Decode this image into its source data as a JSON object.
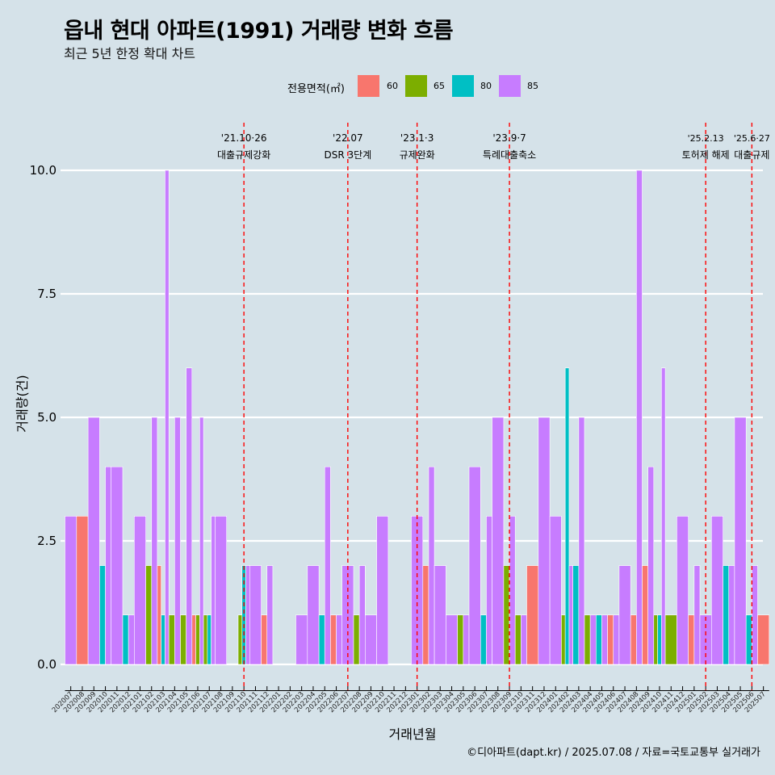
{
  "title": "읍내 현대 아파트(1991) 거래량 변화 흐름",
  "subtitle": "최근 5년 한정 확대 차트",
  "caption": "©디아파트(dapt.kr) / 2025.07.08 / 자료=국토교통부 실거래가",
  "legend": {
    "title": "전용면적(㎡)",
    "items": [
      {
        "label": "60",
        "color": "#F8766D"
      },
      {
        "label": "65",
        "color": "#7CAE00"
      },
      {
        "label": "80",
        "color": "#00BFC4"
      },
      {
        "label": "85",
        "color": "#C77CFF"
      }
    ]
  },
  "chart_data": {
    "type": "bar",
    "title": "읍내 현대 아파트(1991) 거래량 변화 흐름",
    "subtitle": "최근 5년 한정 확대 차트",
    "xlabel": "거래년월",
    "ylabel": "거래량(건)",
    "ylim": [
      0,
      10
    ],
    "yticks": [
      0,
      2.5,
      5,
      7.5,
      10
    ],
    "ytick_labels": [
      "0.0",
      "2.5",
      "5.0",
      "7.5",
      "10.0"
    ],
    "categories": [
      "202007",
      "202008",
      "202009",
      "202010",
      "202011",
      "202012",
      "202101",
      "202102",
      "202103",
      "202104",
      "202105",
      "202106",
      "202107",
      "202108",
      "202109",
      "202110",
      "202111",
      "202112",
      "202201",
      "202202",
      "202203",
      "202204",
      "202205",
      "202206",
      "202207",
      "202208",
      "202209",
      "202210",
      "202211",
      "202212",
      "202301",
      "202302",
      "202303",
      "202304",
      "202305",
      "202306",
      "202307",
      "202308",
      "202309",
      "202310",
      "202311",
      "202312",
      "202401",
      "202402",
      "202403",
      "202404",
      "202405",
      "202406",
      "202407",
      "202408",
      "202409",
      "202410",
      "202411",
      "202412",
      "202501",
      "202502",
      "202503",
      "202504",
      "202505",
      "202506",
      "202507"
    ],
    "series": [
      {
        "name": "60",
        "color": "#F8766D",
        "values": [
          0,
          3,
          0,
          0,
          0,
          0,
          0,
          0,
          2,
          0,
          0,
          1,
          0,
          0,
          0,
          0,
          0,
          1,
          0,
          0,
          0,
          0,
          0,
          1,
          0,
          0,
          0,
          0,
          0,
          0,
          0,
          2,
          0,
          0,
          0,
          0,
          0,
          0,
          0,
          0,
          2,
          0,
          0,
          0,
          0,
          0,
          0,
          1,
          0,
          1,
          2,
          0,
          0,
          0,
          1,
          0,
          0,
          0,
          0,
          0,
          1
        ]
      },
      {
        "name": "65",
        "color": "#7CAE00",
        "values": [
          0,
          0,
          0,
          0,
          0,
          0,
          0,
          2,
          0,
          1,
          1,
          1,
          1,
          0,
          0,
          1,
          0,
          0,
          0,
          0,
          0,
          0,
          0,
          0,
          0,
          1,
          0,
          0,
          0,
          0,
          0,
          0,
          0,
          0,
          1,
          0,
          0,
          0,
          2,
          1,
          0,
          0,
          0,
          1,
          0,
          1,
          0,
          0,
          0,
          0,
          0,
          1,
          1,
          0,
          0,
          0,
          0,
          0,
          0,
          0,
          0
        ]
      },
      {
        "name": "80",
        "color": "#00BFC4",
        "values": [
          0,
          0,
          0,
          2,
          0,
          1,
          0,
          0,
          1,
          0,
          0,
          0,
          1,
          0,
          0,
          2,
          0,
          0,
          0,
          0,
          0,
          0,
          1,
          0,
          0,
          0,
          0,
          0,
          0,
          0,
          0,
          0,
          0,
          0,
          0,
          0,
          1,
          0,
          0,
          0,
          0,
          0,
          0,
          6,
          2,
          0,
          1,
          0,
          0,
          0,
          0,
          1,
          0,
          0,
          0,
          0,
          0,
          2,
          0,
          1,
          0
        ]
      },
      {
        "name": "85",
        "color": "#C77CFF",
        "values": [
          3,
          0,
          5,
          4,
          4,
          1,
          3,
          5,
          10,
          5,
          6,
          5,
          3,
          3,
          0,
          2,
          2,
          2,
          0,
          0,
          1,
          2,
          4,
          1,
          2,
          2,
          1,
          3,
          0,
          0,
          3,
          4,
          2,
          1,
          1,
          4,
          3,
          5,
          3,
          1,
          0,
          5,
          3,
          2,
          5,
          1,
          1,
          1,
          2,
          10,
          4,
          6,
          0,
          3,
          2,
          1,
          3,
          2,
          5,
          2,
          0
        ]
      }
    ],
    "events": [
      {
        "category": "202110",
        "date": "'21.10·26",
        "label": "대출규제강화"
      },
      {
        "category": "202207",
        "date": "'22.07",
        "label": "DSR 3단계"
      },
      {
        "category": "202301",
        "date": "'23.1·3",
        "label": "규제완화"
      },
      {
        "category": "202309",
        "date": "'23.9·7",
        "label": "특례대출축소"
      },
      {
        "category": "202502",
        "date": "'25.2.13",
        "label": "토허제 해제"
      },
      {
        "category": "202506",
        "date": "'25.6·27",
        "label": "대출규제"
      }
    ]
  }
}
